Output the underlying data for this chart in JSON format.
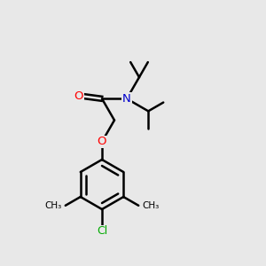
{
  "background_color": "#e8e8e8",
  "bond_color": "#000000",
  "atom_colors": {
    "O": "#ff0000",
    "N": "#0000cc",
    "Cl": "#00aa00",
    "C": "#000000"
  },
  "figsize": [
    3.0,
    3.0
  ],
  "dpi": 100
}
